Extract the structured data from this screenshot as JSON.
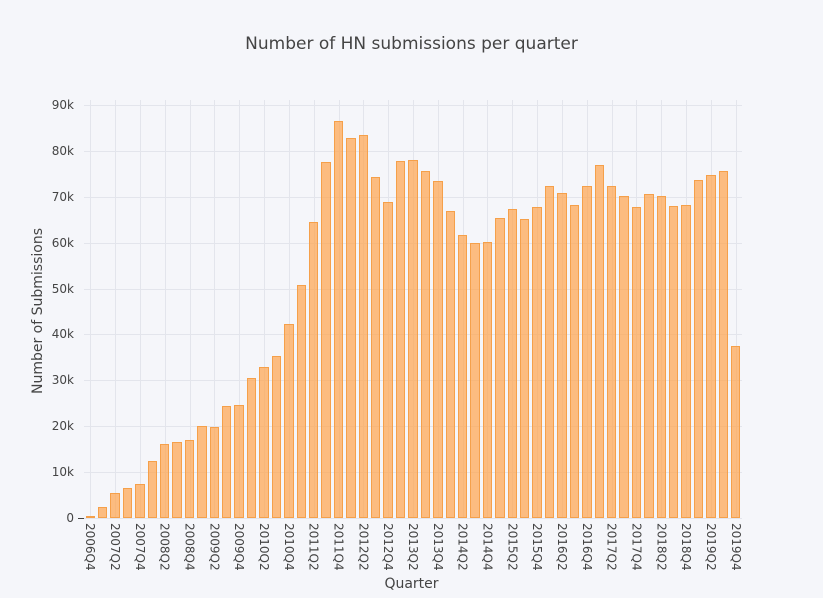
{
  "chart_data": {
    "type": "bar",
    "title": "Number of HN submissions per quarter",
    "xlabel": "Quarter",
    "ylabel": "Number of Submissions",
    "ylim": [
      0,
      90000
    ],
    "y_ticks": [
      "0",
      "10k",
      "20k",
      "30k",
      "40k",
      "50k",
      "60k",
      "70k",
      "80k",
      "90k"
    ],
    "x_tick_labels": [
      "2006Q4",
      "2007Q2",
      "2007Q4",
      "2008Q2",
      "2008Q4",
      "2009Q2",
      "2009Q4",
      "2010Q2",
      "2010Q4",
      "2011Q2",
      "2011Q4",
      "2012Q2",
      "2012Q4",
      "2013Q2",
      "2013Q4",
      "2014Q2",
      "2014Q4",
      "2015Q2",
      "2015Q4",
      "2016Q2",
      "2016Q4",
      "2017Q2",
      "2017Q4",
      "2018Q2",
      "2018Q4",
      "2019Q2",
      "2019Q4"
    ],
    "grid": true,
    "bar_color": "#ffa44c",
    "categories": [
      "2006Q4",
      "2007Q1",
      "2007Q2",
      "2007Q3",
      "2007Q4",
      "2008Q1",
      "2008Q2",
      "2008Q3",
      "2008Q4",
      "2009Q1",
      "2009Q2",
      "2009Q3",
      "2009Q4",
      "2010Q1",
      "2010Q2",
      "2010Q3",
      "2010Q4",
      "2011Q1",
      "2011Q2",
      "2011Q3",
      "2011Q4",
      "2012Q1",
      "2012Q2",
      "2012Q3",
      "2012Q4",
      "2013Q1",
      "2013Q2",
      "2013Q3",
      "2013Q4",
      "2014Q1",
      "2014Q2",
      "2014Q3",
      "2014Q4",
      "2015Q1",
      "2015Q2",
      "2015Q3",
      "2015Q4",
      "2016Q1",
      "2016Q2",
      "2016Q3",
      "2016Q4",
      "2017Q1",
      "2017Q2",
      "2017Q3",
      "2017Q4",
      "2018Q1",
      "2018Q2",
      "2018Q3",
      "2018Q4",
      "2019Q1",
      "2019Q2",
      "2019Q3",
      "2019Q4"
    ],
    "values": [
      300,
      2400,
      5400,
      6500,
      7400,
      12400,
      16100,
      16500,
      17000,
      20000,
      19800,
      24400,
      24600,
      30500,
      32900,
      35300,
      42300,
      50800,
      64500,
      77600,
      86500,
      82800,
      83500,
      74300,
      68900,
      77800,
      78000,
      75600,
      73400,
      66900,
      61700,
      59900,
      60100,
      65400,
      67300,
      65200,
      67800,
      72300,
      70800,
      68200,
      72300,
      76900,
      72300,
      70200,
      67800,
      70600,
      70200,
      68000,
      68200,
      73600,
      74700,
      75600,
      37500
    ]
  }
}
